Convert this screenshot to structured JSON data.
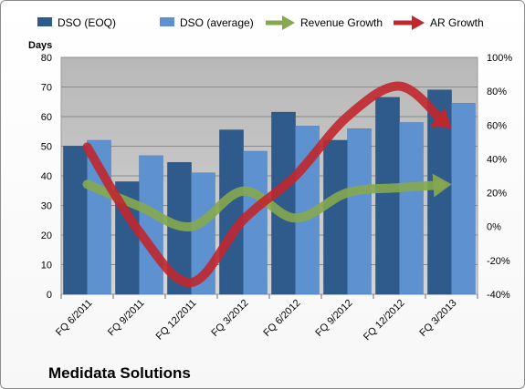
{
  "chart_data": {
    "type": "bar",
    "title": "Medidata Solutions",
    "ylabel": "Days",
    "ylim": [
      0,
      80
    ],
    "yticks": [
      0,
      10,
      20,
      30,
      40,
      50,
      60,
      70,
      80
    ],
    "y2lim": [
      -40,
      100
    ],
    "y2ticks": [
      "-40%",
      "-20%",
      "0%",
      "20%",
      "40%",
      "60%",
      "80%",
      "100%"
    ],
    "y2tick_values": [
      -40,
      -20,
      0,
      20,
      40,
      60,
      80,
      100
    ],
    "categories": [
      "FQ 6/2011",
      "FQ 9/2011",
      "FQ 12/2011",
      "FQ 3/2012",
      "FQ 6/2012",
      "FQ 9/2012",
      "FQ 12/2012",
      "FQ 3/2013"
    ],
    "series": [
      {
        "name": "DSO (EOQ)",
        "type": "bar",
        "axis": "left",
        "color": "#2e5a8c",
        "values": [
          50,
          38,
          44.5,
          55.5,
          61.5,
          52,
          66.5,
          69
        ]
      },
      {
        "name": "DSO (average)",
        "type": "bar",
        "axis": "left",
        "color": "#5e91cf",
        "values": [
          52,
          46.8,
          41,
          48.3,
          56.8,
          55.9,
          58,
          64.5
        ]
      },
      {
        "name": "Revenue Growth",
        "type": "line",
        "axis": "right",
        "color": "#86a84e",
        "values": [
          25,
          12,
          0,
          21,
          5,
          20,
          23,
          25
        ]
      },
      {
        "name": "AR Growth",
        "type": "line",
        "axis": "right",
        "color": "#c0272d",
        "values": [
          47,
          -3,
          -33,
          4,
          30,
          65,
          83,
          58
        ]
      }
    ],
    "legend_position": "top",
    "grid": true,
    "plot_background": "#c0c0c0"
  }
}
